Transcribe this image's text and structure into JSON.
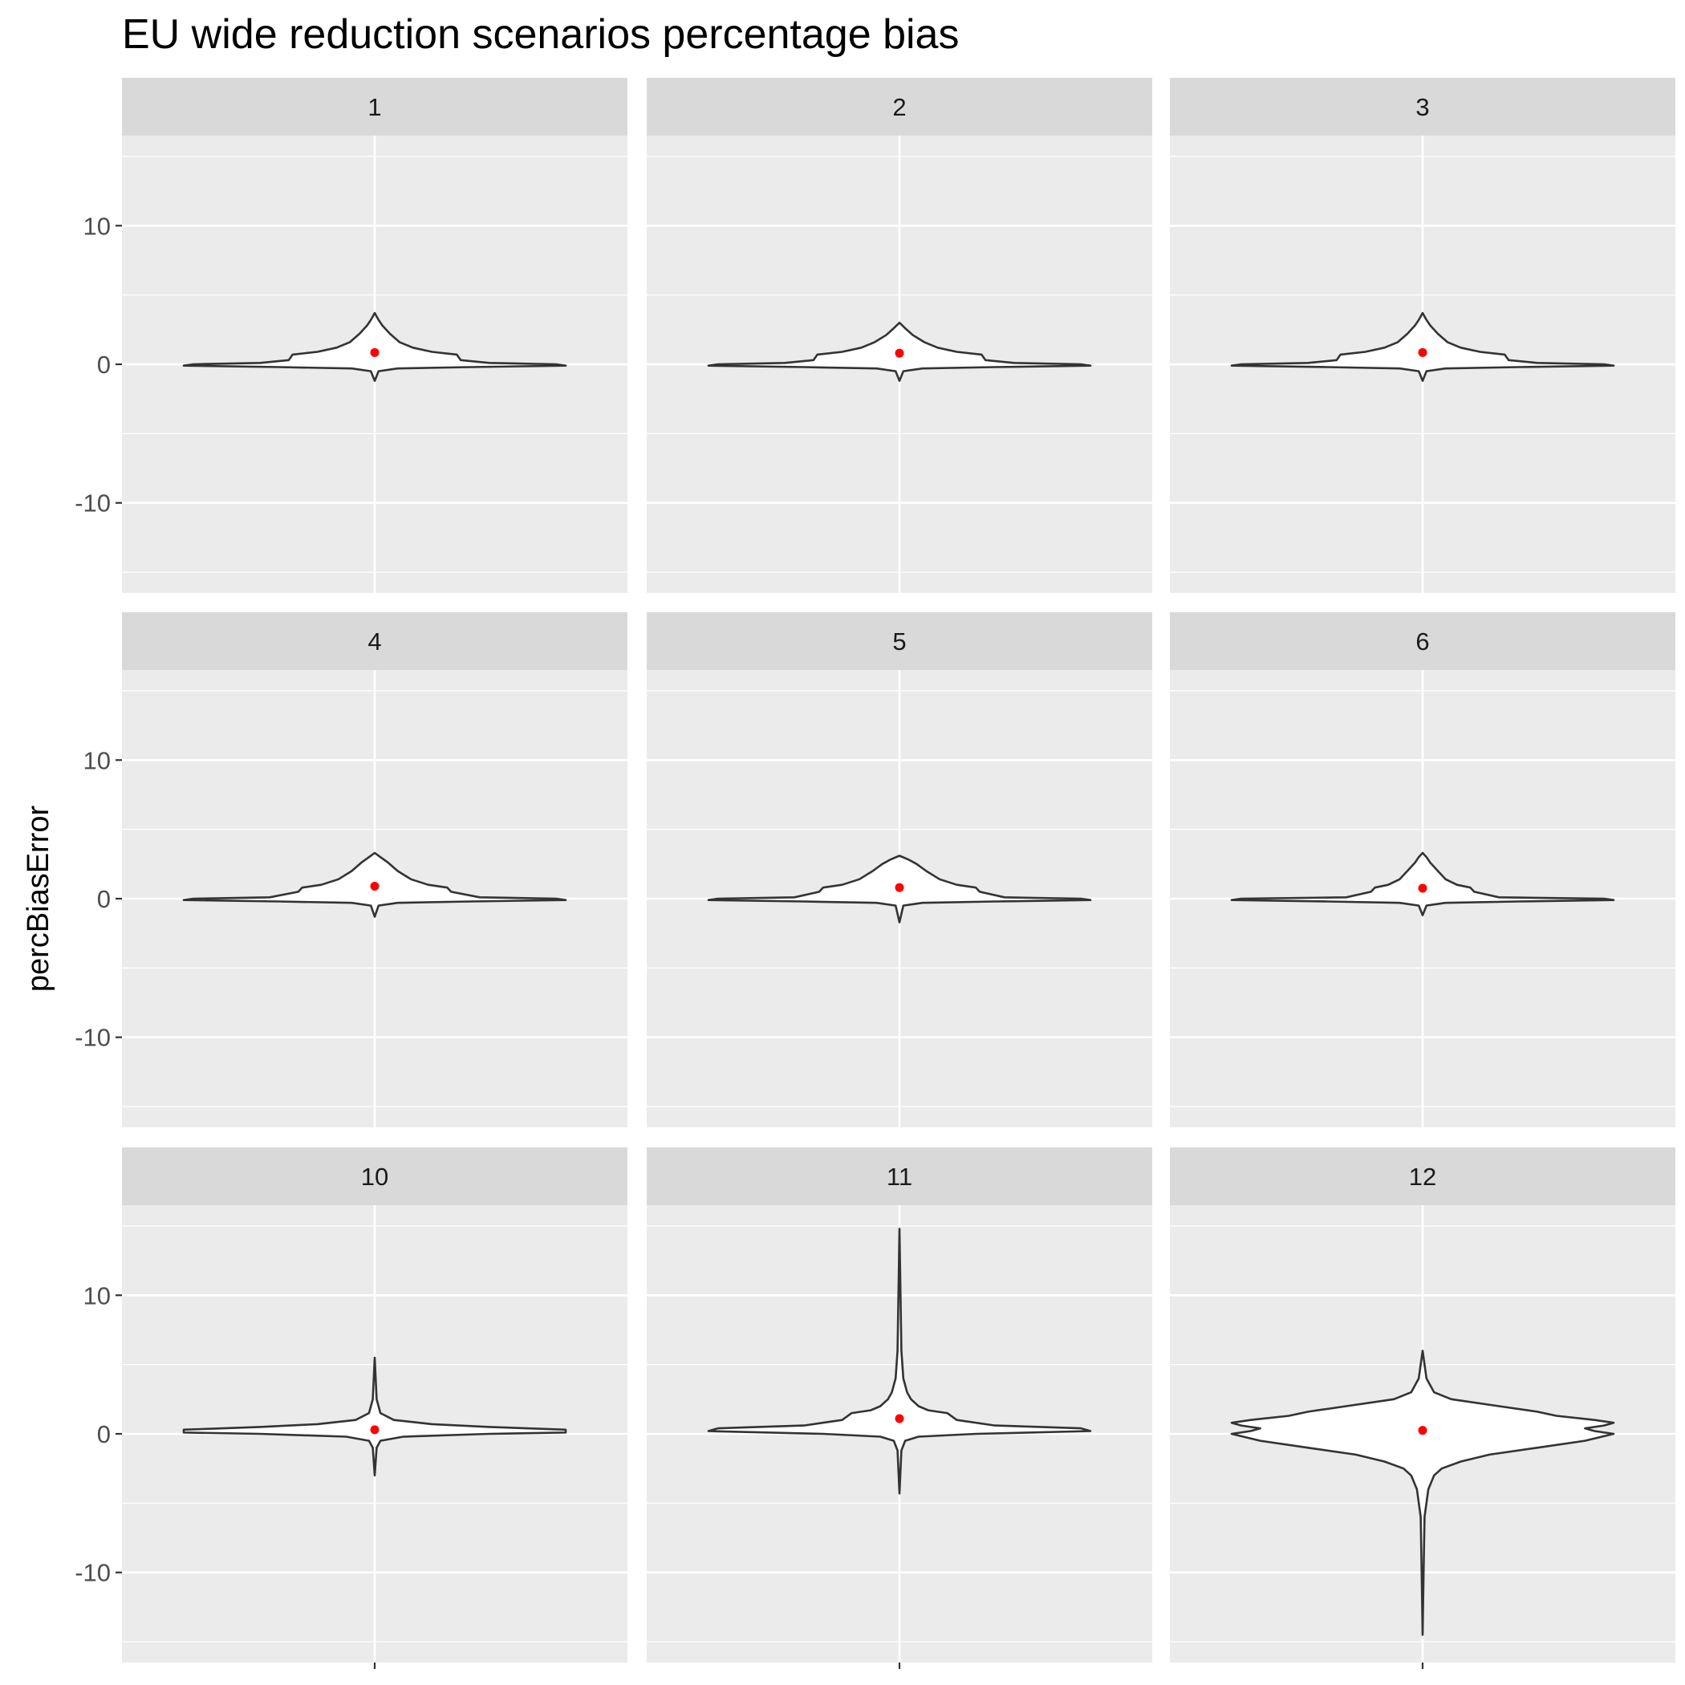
{
  "chart_data": {
    "type": "violin",
    "title": "EU wide reduction scenarios percentage bias",
    "xlabel": "",
    "ylabel": "percBiasError",
    "ylim": [
      -16.5,
      16.5
    ],
    "y_ticks": [
      -10,
      0,
      10
    ],
    "y_tick_labels": [
      "-10",
      "0",
      "10"
    ],
    "grid": true,
    "layout": {
      "rows": 3,
      "cols": 3
    },
    "colors": {
      "panel": "#ebebeb",
      "strip": "#d9d9d9",
      "grid": "#ffffff",
      "violin_fill": "#ffffff",
      "violin_line": "#333333",
      "mean_point": "#ff0000"
    },
    "panels": [
      {
        "label": "1",
        "mean": 0.85,
        "profile": [
          [
            -1.2,
            0
          ],
          [
            -0.5,
            0.02
          ],
          [
            -0.3,
            0.12
          ],
          [
            -0.2,
            0.5
          ],
          [
            -0.1,
            1
          ],
          [
            0,
            0.95
          ],
          [
            0.1,
            0.6
          ],
          [
            0.3,
            0.45
          ],
          [
            0.7,
            0.43
          ],
          [
            0.9,
            0.3
          ],
          [
            1.2,
            0.2
          ],
          [
            1.6,
            0.13
          ],
          [
            2.2,
            0.08
          ],
          [
            2.8,
            0.04
          ],
          [
            3.2,
            0.02
          ],
          [
            3.7,
            0
          ]
        ]
      },
      {
        "label": "2",
        "mean": 0.8,
        "profile": [
          [
            -1.2,
            0
          ],
          [
            -0.5,
            0.02
          ],
          [
            -0.3,
            0.12
          ],
          [
            -0.2,
            0.5
          ],
          [
            -0.1,
            1
          ],
          [
            0,
            0.95
          ],
          [
            0.1,
            0.6
          ],
          [
            0.3,
            0.45
          ],
          [
            0.7,
            0.43
          ],
          [
            0.9,
            0.3
          ],
          [
            1.2,
            0.2
          ],
          [
            1.6,
            0.13
          ],
          [
            2.1,
            0.07
          ],
          [
            2.6,
            0.03
          ],
          [
            3.0,
            0
          ]
        ]
      },
      {
        "label": "3",
        "mean": 0.85,
        "profile": [
          [
            -1.2,
            0
          ],
          [
            -0.5,
            0.02
          ],
          [
            -0.3,
            0.12
          ],
          [
            -0.2,
            0.5
          ],
          [
            -0.1,
            1
          ],
          [
            0,
            0.95
          ],
          [
            0.1,
            0.6
          ],
          [
            0.3,
            0.45
          ],
          [
            0.7,
            0.43
          ],
          [
            0.9,
            0.3
          ],
          [
            1.2,
            0.2
          ],
          [
            1.6,
            0.13
          ],
          [
            2.2,
            0.08
          ],
          [
            2.8,
            0.04
          ],
          [
            3.2,
            0.02
          ],
          [
            3.7,
            0
          ]
        ]
      },
      {
        "label": "4",
        "mean": 0.9,
        "profile": [
          [
            -1.3,
            0
          ],
          [
            -0.5,
            0.02
          ],
          [
            -0.3,
            0.12
          ],
          [
            -0.2,
            0.5
          ],
          [
            -0.1,
            1
          ],
          [
            0,
            0.95
          ],
          [
            0.1,
            0.55
          ],
          [
            0.5,
            0.4
          ],
          [
            0.8,
            0.38
          ],
          [
            1.0,
            0.28
          ],
          [
            1.4,
            0.19
          ],
          [
            2.0,
            0.12
          ],
          [
            2.6,
            0.07
          ],
          [
            3.0,
            0.03
          ],
          [
            3.3,
            0
          ]
        ]
      },
      {
        "label": "5",
        "mean": 0.8,
        "profile": [
          [
            -1.7,
            0
          ],
          [
            -0.5,
            0.02
          ],
          [
            -0.3,
            0.12
          ],
          [
            -0.2,
            0.5
          ],
          [
            -0.1,
            1
          ],
          [
            0,
            0.95
          ],
          [
            0.1,
            0.55
          ],
          [
            0.5,
            0.42
          ],
          [
            0.8,
            0.4
          ],
          [
            1.0,
            0.3
          ],
          [
            1.4,
            0.21
          ],
          [
            2.0,
            0.14
          ],
          [
            2.5,
            0.09
          ],
          [
            2.8,
            0.05
          ],
          [
            3.1,
            0
          ]
        ]
      },
      {
        "label": "6",
        "mean": 0.75,
        "profile": [
          [
            -1.2,
            0
          ],
          [
            -0.5,
            0.02
          ],
          [
            -0.3,
            0.12
          ],
          [
            -0.2,
            0.5
          ],
          [
            -0.1,
            1
          ],
          [
            0,
            0.95
          ],
          [
            0.1,
            0.4
          ],
          [
            0.5,
            0.27
          ],
          [
            0.8,
            0.25
          ],
          [
            1.0,
            0.18
          ],
          [
            1.4,
            0.12
          ],
          [
            2.0,
            0.08
          ],
          [
            2.6,
            0.04
          ],
          [
            3.0,
            0.02
          ],
          [
            3.3,
            0
          ]
        ]
      },
      {
        "label": "10",
        "mean": 0.3,
        "profile": [
          [
            -3.0,
            0
          ],
          [
            -1.0,
            0.01
          ],
          [
            -0.5,
            0.03
          ],
          [
            -0.2,
            0.15
          ],
          [
            0,
            0.6
          ],
          [
            0.1,
            1
          ],
          [
            0.3,
            1
          ],
          [
            0.5,
            0.6
          ],
          [
            0.7,
            0.3
          ],
          [
            1.0,
            0.1
          ],
          [
            1.5,
            0.03
          ],
          [
            2.5,
            0.01
          ],
          [
            5.5,
            0
          ]
        ]
      },
      {
        "label": "11",
        "mean": 1.1,
        "profile": [
          [
            -4.3,
            0
          ],
          [
            -1.2,
            0.01
          ],
          [
            -0.5,
            0.03
          ],
          [
            -0.2,
            0.1
          ],
          [
            0,
            0.4
          ],
          [
            0.2,
            1
          ],
          [
            0.4,
            0.95
          ],
          [
            0.6,
            0.5
          ],
          [
            1.0,
            0.3
          ],
          [
            1.5,
            0.25
          ],
          [
            1.7,
            0.15
          ],
          [
            2.0,
            0.1
          ],
          [
            2.5,
            0.06
          ],
          [
            3.0,
            0.04
          ],
          [
            4.0,
            0.02
          ],
          [
            6.0,
            0.01
          ],
          [
            14.8,
            0
          ]
        ]
      },
      {
        "label": "12",
        "mean": 0.25,
        "profile": [
          [
            -14.5,
            0
          ],
          [
            -10,
            0.005
          ],
          [
            -6,
            0.01
          ],
          [
            -4,
            0.03
          ],
          [
            -3,
            0.06
          ],
          [
            -2.5,
            0.1
          ],
          [
            -2,
            0.2
          ],
          [
            -1.5,
            0.35
          ],
          [
            -1,
            0.6
          ],
          [
            -0.5,
            0.85
          ],
          [
            0,
            1
          ],
          [
            0.2,
            0.9
          ],
          [
            0.4,
            0.85
          ],
          [
            0.6,
            0.95
          ],
          [
            0.8,
            1
          ],
          [
            1.0,
            0.9
          ],
          [
            1.3,
            0.7
          ],
          [
            1.6,
            0.6
          ],
          [
            2.0,
            0.4
          ],
          [
            2.5,
            0.15
          ],
          [
            3.0,
            0.06
          ],
          [
            3.5,
            0.04
          ],
          [
            4.0,
            0.02
          ],
          [
            5.0,
            0.01
          ],
          [
            6.0,
            0
          ]
        ]
      }
    ]
  }
}
